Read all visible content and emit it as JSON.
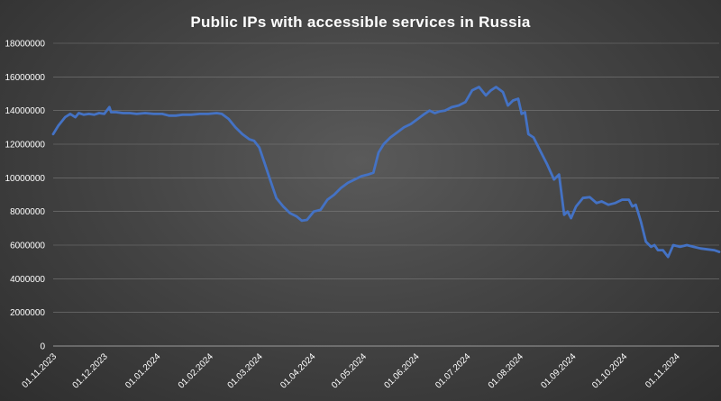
{
  "chart_data": {
    "type": "line",
    "title": "Public IPs with accessible services in Russia",
    "xlabel": "",
    "ylabel": "",
    "ylim": [
      0,
      18000000
    ],
    "yticks": [
      0,
      2000000,
      4000000,
      6000000,
      8000000,
      10000000,
      12000000,
      14000000,
      16000000,
      18000000
    ],
    "ytick_labels": [
      "0",
      "2000000",
      "4000000",
      "6000000",
      "8000000",
      "10000000",
      "12000000",
      "14000000",
      "16000000",
      "18000000"
    ],
    "xlim": [
      "2023-11-01",
      "2024-11-26"
    ],
    "xtick_labels": [
      "01.11.2023",
      "01.12.2023",
      "01.01.2024",
      "01.02.2024",
      "01.03.2024",
      "01.04.2024",
      "01.05.2024",
      "01.06.2024",
      "01.07.2024",
      "01.08.2024",
      "01.09.2024",
      "01.10.2024",
      "01.11.2024"
    ],
    "xtick_dates": [
      "2023-11-01",
      "2023-12-01",
      "2024-01-01",
      "2024-02-01",
      "2024-03-01",
      "2024-04-01",
      "2024-05-01",
      "2024-06-01",
      "2024-07-01",
      "2024-08-01",
      "2024-09-01",
      "2024-10-01",
      "2024-11-01"
    ],
    "grid": true,
    "legend": "none",
    "series": [
      {
        "color": "#4472c4",
        "x": [
          "2023-11-01",
          "2023-11-04",
          "2023-11-08",
          "2023-11-11",
          "2023-11-14",
          "2023-11-16",
          "2023-11-19",
          "2023-11-22",
          "2023-11-25",
          "2023-11-28",
          "2023-12-01",
          "2023-12-04",
          "2023-12-05",
          "2023-12-08",
          "2023-12-12",
          "2023-12-16",
          "2023-12-20",
          "2023-12-25",
          "2023-12-30",
          "2024-01-04",
          "2024-01-08",
          "2024-01-12",
          "2024-01-16",
          "2024-01-21",
          "2024-01-26",
          "2024-01-31",
          "2024-02-05",
          "2024-02-08",
          "2024-02-12",
          "2024-02-16",
          "2024-02-20",
          "2024-02-24",
          "2024-02-27",
          "2024-03-01",
          "2024-03-04",
          "2024-03-07",
          "2024-03-11",
          "2024-03-15",
          "2024-03-19",
          "2024-03-23",
          "2024-03-26",
          "2024-03-29",
          "2024-04-02",
          "2024-04-06",
          "2024-04-10",
          "2024-04-14",
          "2024-04-18",
          "2024-04-22",
          "2024-04-26",
          "2024-04-30",
          "2024-05-04",
          "2024-05-07",
          "2024-05-10",
          "2024-05-13",
          "2024-05-17",
          "2024-05-21",
          "2024-05-25",
          "2024-05-29",
          "2024-06-02",
          "2024-06-06",
          "2024-06-09",
          "2024-06-12",
          "2024-06-15",
          "2024-06-18",
          "2024-06-22",
          "2024-06-26",
          "2024-06-30",
          "2024-07-04",
          "2024-07-08",
          "2024-07-12",
          "2024-07-15",
          "2024-07-18",
          "2024-07-22",
          "2024-07-25",
          "2024-07-28",
          "2024-07-31",
          "2024-08-02",
          "2024-08-04",
          "2024-08-06",
          "2024-08-09",
          "2024-08-13",
          "2024-08-17",
          "2024-08-21",
          "2024-08-24",
          "2024-08-27",
          "2024-08-29",
          "2024-08-31",
          "2024-09-03",
          "2024-09-07",
          "2024-09-11",
          "2024-09-15",
          "2024-09-18",
          "2024-09-22",
          "2024-09-26",
          "2024-09-30",
          "2024-10-04",
          "2024-10-06",
          "2024-10-08",
          "2024-10-11",
          "2024-10-14",
          "2024-10-17",
          "2024-10-19",
          "2024-10-21",
          "2024-10-24",
          "2024-10-27",
          "2024-10-30",
          "2024-11-03",
          "2024-11-07",
          "2024-11-11",
          "2024-11-15",
          "2024-11-19",
          "2024-11-23",
          "2024-11-26"
        ],
        "y": [
          12600000,
          13100000,
          13600000,
          13800000,
          13600000,
          13850000,
          13750000,
          13800000,
          13750000,
          13850000,
          13800000,
          14200000,
          13900000,
          13900000,
          13850000,
          13850000,
          13800000,
          13850000,
          13800000,
          13800000,
          13700000,
          13700000,
          13750000,
          13750000,
          13800000,
          13800000,
          13850000,
          13800000,
          13500000,
          13000000,
          12600000,
          12300000,
          12200000,
          11800000,
          10900000,
          10000000,
          8800000,
          8300000,
          7900000,
          7700000,
          7450000,
          7500000,
          8000000,
          8100000,
          8700000,
          9000000,
          9400000,
          9700000,
          9900000,
          10100000,
          10200000,
          10300000,
          11500000,
          12000000,
          12400000,
          12700000,
          13000000,
          13200000,
          13500000,
          13800000,
          14000000,
          13850000,
          13950000,
          14000000,
          14200000,
          14300000,
          14500000,
          15200000,
          15400000,
          14900000,
          15200000,
          15400000,
          15100000,
          14300000,
          14600000,
          14700000,
          13800000,
          13900000,
          12600000,
          12400000,
          11600000,
          10800000,
          9900000,
          10200000,
          7800000,
          8000000,
          7600000,
          8300000,
          8800000,
          8850000,
          8500000,
          8600000,
          8400000,
          8500000,
          8700000,
          8700000,
          8300000,
          8400000,
          7400000,
          6200000,
          5900000,
          6000000,
          5700000,
          5700000,
          5300000,
          6000000,
          5900000,
          6000000,
          5900000,
          5800000,
          5750000,
          5700000,
          5600000
        ]
      }
    ]
  }
}
